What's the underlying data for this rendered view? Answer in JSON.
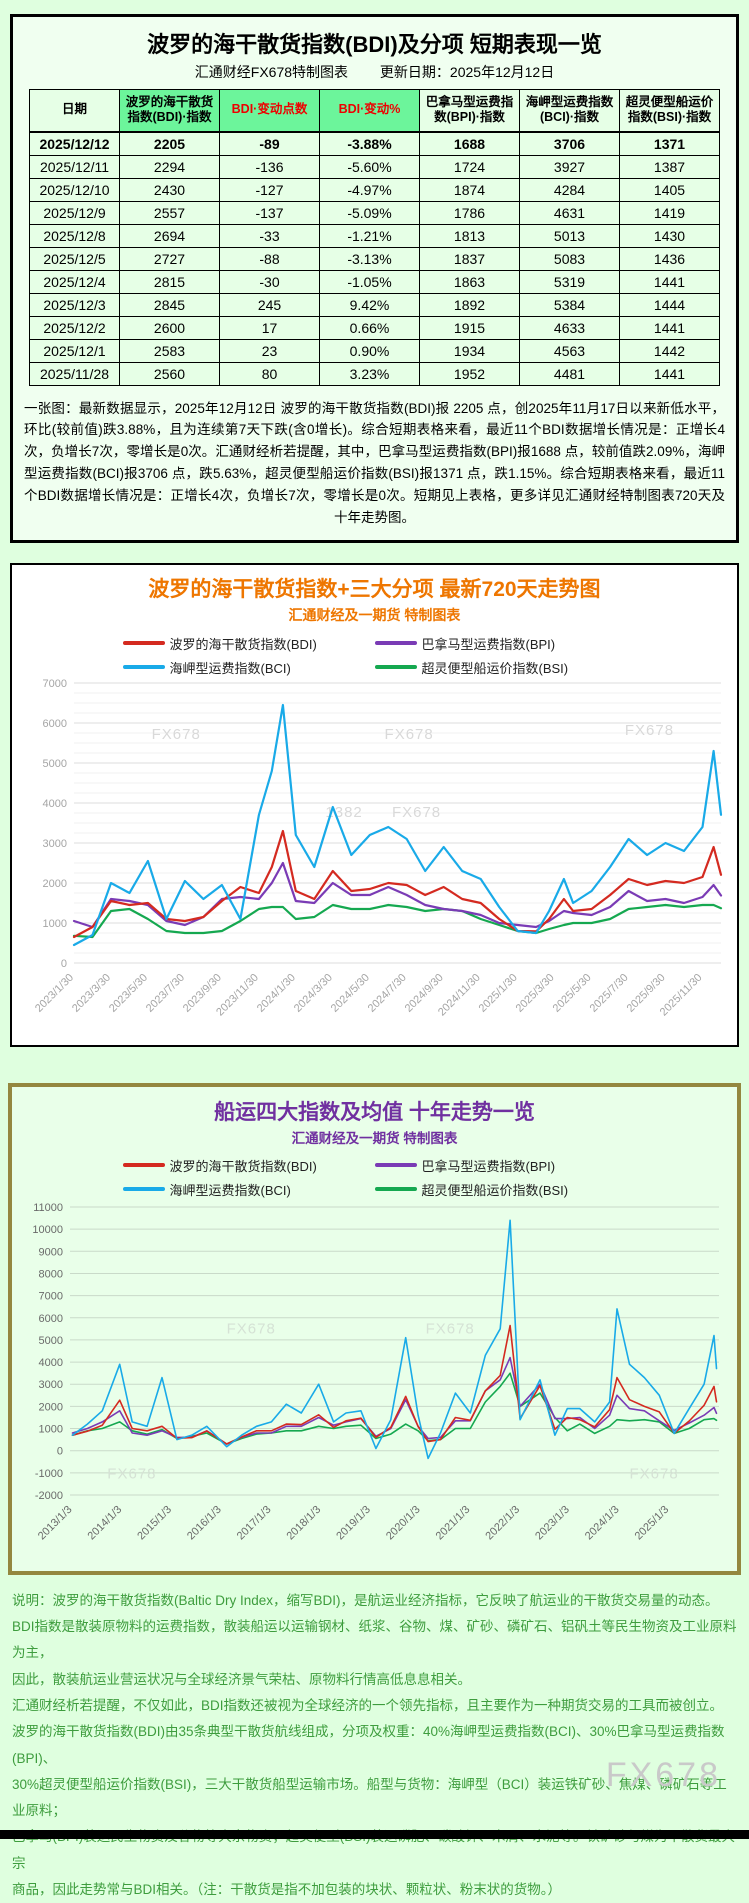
{
  "page": {
    "watermark": "FX678"
  },
  "table_panel": {
    "title": "波罗的海干散货指数(BDI)及分项 短期表现一览",
    "subtitle_left": "汇通财经FX678特制图表",
    "subtitle_right": "更新日期：2025年12月12日",
    "columns": [
      {
        "label": "日期",
        "bg": "pale",
        "color": "black"
      },
      {
        "label": "波罗的海干散货指数(BDI)·指数",
        "bg": "green",
        "color": "black"
      },
      {
        "label": "BDI·变动点数",
        "bg": "green",
        "color": "red"
      },
      {
        "label": "BDI·变动%",
        "bg": "green",
        "color": "red"
      },
      {
        "label": "巴拿马型运费指数(BPI)·指数",
        "bg": "pale",
        "color": "black"
      },
      {
        "label": "海岬型运费指数(BCI)·指数",
        "bg": "pale",
        "color": "black"
      },
      {
        "label": "超灵便型船运价指数(BSI)·指数",
        "bg": "pale",
        "color": "black"
      }
    ],
    "rows": [
      [
        "2025/12/12",
        "2205",
        "-89",
        "-3.88%",
        "1688",
        "3706",
        "1371"
      ],
      [
        "2025/12/11",
        "2294",
        "-136",
        "-5.60%",
        "1724",
        "3927",
        "1387"
      ],
      [
        "2025/12/10",
        "2430",
        "-127",
        "-4.97%",
        "1874",
        "4284",
        "1405"
      ],
      [
        "2025/12/9",
        "2557",
        "-137",
        "-5.09%",
        "1786",
        "4631",
        "1419"
      ],
      [
        "2025/12/8",
        "2694",
        "-33",
        "-1.21%",
        "1813",
        "5013",
        "1430"
      ],
      [
        "2025/12/5",
        "2727",
        "-88",
        "-3.13%",
        "1837",
        "5083",
        "1436"
      ],
      [
        "2025/12/4",
        "2815",
        "-30",
        "-1.05%",
        "1863",
        "5319",
        "1441"
      ],
      [
        "2025/12/3",
        "2845",
        "245",
        "9.42%",
        "1892",
        "5384",
        "1444"
      ],
      [
        "2025/12/2",
        "2600",
        "17",
        "0.66%",
        "1915",
        "4633",
        "1441"
      ],
      [
        "2025/12/1",
        "2583",
        "23",
        "0.90%",
        "1934",
        "4563",
        "1442"
      ],
      [
        "2025/11/28",
        "2560",
        "80",
        "3.23%",
        "1952",
        "4481",
        "1441"
      ]
    ],
    "summary": "一张图：最新数据显示，2025年12月12日 波罗的海干散货指数(BDI)报 2205 点，创2025年11月17日以来新低水平，环比(较前值)跌3.88%，且为连续第7天下跌(含0增长)。综合短期表格来看，最近11个BDI数据增长情况是：正增长4次，负增长7次，零增长是0次。汇通财经析若提醒，其中，巴拿马型运费指数(BPI)报1688 点，较前值跌2.09%，海岬型运费指数(BCI)报3706 点，跌5.63%，超灵便型船运价指数(BSI)报1371 点，跌1.15%。综合短期表格来看，最近11个BDI数据增长情况是：正增长4次，负增长7次，零增长是0次。短期见上表格，更多详见汇通财经特制图表720天及十年走势图。"
  },
  "chart_data": [
    {
      "type": "line",
      "title": "波罗的海干散货指数+三大分项  最新720天走势图",
      "subtitle": "汇通财经及一期货 特制图表",
      "title_color": "#ee7600",
      "ylim": [
        0,
        7000
      ],
      "ytick_step": 1000,
      "ytick_minor": 250,
      "xrange": [
        0,
        35
      ],
      "xtick_positions": [
        0,
        2,
        4,
        6,
        8,
        10,
        12,
        14,
        16,
        18,
        20,
        22,
        24,
        26,
        28,
        30,
        32,
        34
      ],
      "xticks": [
        "2023/1/30",
        "2023/3/30",
        "2023/5/30",
        "2023/7/30",
        "2023/9/30",
        "2023/11/30",
        "2024/1/30",
        "2024/3/30",
        "2024/5/30",
        "2024/7/30",
        "2024/9/30",
        "2024/11/30",
        "2025/1/30",
        "2025/3/30",
        "2025/5/30",
        "2025/7/30",
        "2025/9/30",
        "2025/11/30"
      ],
      "grid_color": "#dddddd",
      "grid_minor_color": "#f1f1f1",
      "axis_color": "#a5a5a5",
      "watermark_color": "#d9d9d9",
      "legend_position": "top",
      "grid": "on",
      "line_width": 2.2,
      "draw_order": [
        3,
        1,
        0,
        2
      ],
      "x": [
        0,
        1,
        2,
        3,
        4,
        5,
        6,
        7,
        8,
        9,
        10,
        10.7,
        11.3,
        12,
        13,
        14,
        15,
        16,
        17,
        18,
        19,
        20,
        21,
        22,
        23,
        24,
        25,
        25.7,
        26.5,
        27,
        28,
        29,
        30,
        31,
        32,
        33,
        34,
        34.6,
        35
      ],
      "series": [
        {
          "id": "BDI",
          "name": "波罗的海干散货指数(BDI)",
          "color": "#d42a20",
          "values": [
            650,
            900,
            1550,
            1450,
            1500,
            1100,
            1050,
            1150,
            1550,
            1900,
            1750,
            2400,
            3300,
            1800,
            1600,
            2300,
            1800,
            1850,
            2000,
            1950,
            1700,
            1900,
            1600,
            1500,
            1100,
            800,
            790,
            1100,
            1600,
            1300,
            1350,
            1700,
            2100,
            1950,
            2050,
            2000,
            2150,
            2900,
            2205
          ]
        },
        {
          "id": "BPI",
          "name": "巴拿马型运费指数(BPI)",
          "color": "#7a3bb5",
          "values": [
            1050,
            900,
            1600,
            1550,
            1450,
            1050,
            950,
            1150,
            1600,
            1650,
            1600,
            2000,
            2500,
            1550,
            1500,
            2000,
            1700,
            1700,
            1900,
            1700,
            1450,
            1350,
            1300,
            1200,
            1000,
            950,
            900,
            1050,
            1300,
            1250,
            1200,
            1400,
            1800,
            1550,
            1600,
            1500,
            1650,
            1950,
            1688
          ]
        },
        {
          "id": "BCI",
          "name": "海岬型运费指数(BCI)",
          "color": "#19aae8",
          "values": [
            450,
            700,
            2000,
            1750,
            2550,
            1100,
            2050,
            1600,
            1950,
            1100,
            3700,
            4800,
            6450,
            3200,
            2400,
            3900,
            2700,
            3200,
            3400,
            3100,
            2300,
            2900,
            2300,
            2100,
            1400,
            800,
            750,
            1300,
            2100,
            1500,
            1800,
            2400,
            3100,
            2700,
            3000,
            2800,
            3400,
            5300,
            3706
          ]
        },
        {
          "id": "BSI",
          "name": "超灵便型船运价指数(BSI)",
          "color": "#15a850",
          "values": [
            680,
            650,
            1300,
            1350,
            1100,
            800,
            750,
            750,
            800,
            1050,
            1350,
            1400,
            1400,
            1100,
            1150,
            1450,
            1350,
            1350,
            1450,
            1400,
            1300,
            1350,
            1300,
            1100,
            950,
            800,
            750,
            850,
            950,
            1000,
            1000,
            1100,
            1350,
            1400,
            1450,
            1400,
            1450,
            1450,
            1371
          ]
        }
      ],
      "watermarks": [
        {
          "text": "FX678",
          "x": 4.2,
          "y": 5600
        },
        {
          "text": "FX678",
          "x": 16.8,
          "y": 5600
        },
        {
          "text": "FX678",
          "x": 29.8,
          "y": 5700
        },
        {
          "text": "1382",
          "x": 13.6,
          "y": 3650
        },
        {
          "text": "FX678",
          "x": 17.2,
          "y": 3650
        }
      ]
    },
    {
      "type": "line",
      "title": "船运四大指数及均值 十年走势一览",
      "subtitle": "汇通财经及一期货 特制图表",
      "title_color": "#7030a0",
      "ylim": [
        -2000,
        11000
      ],
      "ytick_step": 1000,
      "xrange": [
        2012.95,
        2026.0
      ],
      "xtick_positions": [
        2013,
        2014,
        2015,
        2016,
        2017,
        2018,
        2019,
        2020,
        2021,
        2022,
        2023,
        2024,
        2025
      ],
      "xticks": [
        "2013/1/3",
        "2014/1/3",
        "2015/1/3",
        "2016/1/3",
        "2017/1/3",
        "2018/1/3",
        "2019/1/3",
        "2020/1/3",
        "2021/1/3",
        "2022/1/3",
        "2023/1/3",
        "2024/1/3",
        "2025/1/3"
      ],
      "grid_color": "#c9dac9",
      "axis_color": "#6a6a6a",
      "watermark_color": "#d5e2d5",
      "legend_position": "top",
      "grid": "on",
      "line_width": 1.6,
      "draw_order": [
        3,
        1,
        0,
        2
      ],
      "x": [
        2013.0,
        2013.3,
        2013.6,
        2013.95,
        2014.2,
        2014.5,
        2014.8,
        2015.1,
        2015.4,
        2015.7,
        2016.1,
        2016.4,
        2016.7,
        2017.0,
        2017.3,
        2017.6,
        2017.95,
        2018.25,
        2018.5,
        2018.8,
        2019.1,
        2019.4,
        2019.7,
        2019.95,
        2020.15,
        2020.4,
        2020.7,
        2021.0,
        2021.3,
        2021.6,
        2021.8,
        2022.0,
        2022.4,
        2022.7,
        2022.95,
        2023.2,
        2023.5,
        2023.8,
        2023.95,
        2024.2,
        2024.5,
        2024.8,
        2025.1,
        2025.4,
        2025.7,
        2025.9,
        2025.95
      ],
      "series": [
        {
          "id": "BDI",
          "name": "波罗的海干散货指数(BDI)",
          "color": "#d42a20",
          "values": [
            700,
            880,
            1150,
            2280,
            1000,
            900,
            1100,
            560,
            590,
            890,
            300,
            620,
            900,
            900,
            1200,
            1180,
            1620,
            1050,
            1350,
            1470,
            600,
            1050,
            2450,
            1090,
            410,
            500,
            1500,
            1370,
            2700,
            3400,
            5650,
            1450,
            2940,
            965,
            1500,
            1400,
            1080,
            1850,
            3300,
            2300,
            2000,
            1750,
            790,
            1340,
            2050,
            2900,
            2205
          ]
        },
        {
          "id": "BPI",
          "name": "巴拿马型运费指数(BPI)",
          "color": "#7a3bb5",
          "values": [
            800,
            1000,
            1300,
            1800,
            800,
            700,
            900,
            600,
            600,
            900,
            300,
            600,
            800,
            800,
            1100,
            1100,
            1500,
            1150,
            1300,
            1450,
            650,
            1000,
            2300,
            1100,
            550,
            600,
            1350,
            1350,
            2700,
            3200,
            4200,
            2000,
            3000,
            1450,
            1450,
            1500,
            1000,
            1600,
            2500,
            1900,
            1800,
            1350,
            920,
            1250,
            1600,
            1950,
            1688
          ]
        },
        {
          "id": "BCI",
          "name": "海岬型运费指数(BCI)",
          "color": "#19aae8",
          "values": [
            700,
            1200,
            1800,
            3900,
            1300,
            1100,
            3300,
            500,
            700,
            1100,
            180,
            700,
            1100,
            1300,
            2100,
            1700,
            3000,
            1300,
            1700,
            1800,
            100,
            1400,
            5100,
            1600,
            -350,
            800,
            2600,
            1700,
            4300,
            5500,
            10400,
            1400,
            3200,
            700,
            1900,
            1900,
            1300,
            2200,
            6400,
            3900,
            3300,
            2500,
            780,
            1900,
            3000,
            5200,
            3706
          ]
        },
        {
          "id": "BSI",
          "name": "超灵便型船运价指数(BSI)",
          "color": "#15a850",
          "values": [
            700,
            900,
            1000,
            1300,
            900,
            750,
            950,
            550,
            650,
            800,
            300,
            550,
            750,
            800,
            900,
            900,
            1100,
            1000,
            1100,
            1150,
            550,
            750,
            1200,
            900,
            450,
            500,
            1000,
            1000,
            2200,
            2900,
            3500,
            2000,
            2600,
            1500,
            900,
            1200,
            780,
            1100,
            1400,
            1350,
            1400,
            1300,
            780,
            1000,
            1400,
            1450,
            1371
          ]
        }
      ],
      "watermarks": [
        {
          "text": "FX678",
          "x": 2016.1,
          "y": 5300
        },
        {
          "text": "FX678",
          "x": 2020.1,
          "y": 5300
        },
        {
          "text": "FX678",
          "x": 2013.7,
          "y": -1250
        },
        {
          "text": "FX678",
          "x": 2024.2,
          "y": -1250
        }
      ]
    }
  ],
  "footer": {
    "lines": [
      "说明：波罗的海干散货指数(Baltic Dry Index，缩写BDI)，是航运业经济指标，它反映了航运业的干散货交易量的动态。",
      "BDI指数是散装原物料的运费指数，散装船运以运输钢材、纸浆、谷物、煤、矿砂、磷矿石、铝矾土等民生物资及工业原料为主，",
      "因此，散装航运业营运状况与全球经济景气荣枯、原物料行情高低息息相关。",
      "汇通财经析若提醒，不仅如此，BDI指数还被视为全球经济的一个领先指标，且主要作为一种期货交易的工具而被创立。",
      "波罗的海干散货指数(BDI)由35条典型干散货航线组成，分项及权重：40%海岬型运费指数(BCI)、30%巴拿马型运费指数(BPI)、",
      "30%超灵便型船运价指数(BSI)，三大干散货船型运输市场。船型与货物：海岬型（BCI）装运铁矿砂、焦煤、磷矿石等工业原料；",
      "巴拿马(BPI)装运民生物资及谷物等大宗物资；超灵便型(BSI)装运磷肥、碳酸钾、木屑、水泥等。铁矿砂与煤为干散货最大宗",
      "商品，因此走势常与BDI相关。（注：干散货是指不加包装的块状、颗粒状、粉末状的货物。）"
    ],
    "watermark": "FX678"
  }
}
